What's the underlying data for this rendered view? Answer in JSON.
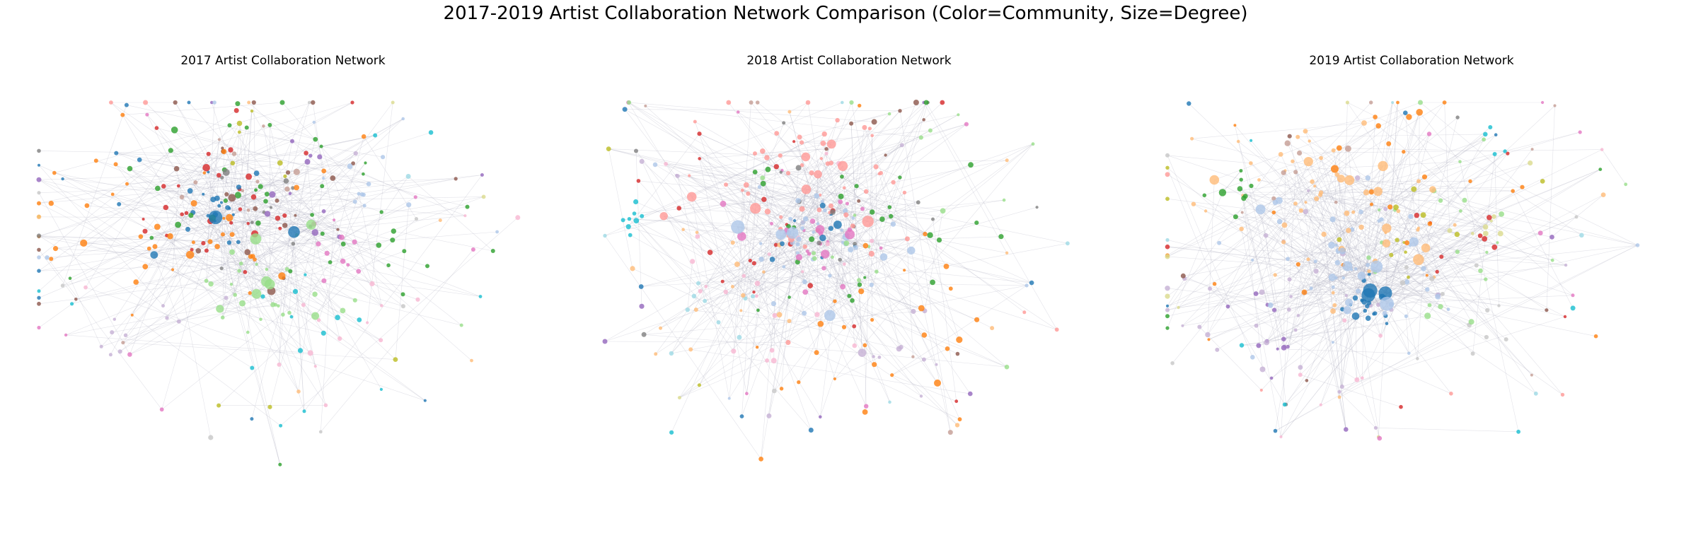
{
  "figure": {
    "title": "2017-2019 Artist Collaboration Network Comparison (Color=Community, Size=Degree)"
  },
  "palette": [
    "#1f77b4",
    "#aec7e8",
    "#ff7f0e",
    "#ffbb78",
    "#2ca02c",
    "#98df8a",
    "#d62728",
    "#ff9896",
    "#9467bd",
    "#c5b0d5",
    "#8c564b",
    "#c49c94",
    "#e377c2",
    "#f7b6d2",
    "#7f7f7f",
    "#c7c7c7",
    "#bcbd22",
    "#dbdb8d",
    "#17becf",
    "#9edae5"
  ],
  "chart_data": [
    {
      "type": "network",
      "title": "2017 Artist Collaboration Network",
      "encoding": {
        "color": "Community",
        "size": "Degree"
      },
      "node_count_estimate": 320,
      "dominant_communities": [
        "blue (hub, center-left)",
        "red",
        "orange",
        "green",
        "light green (lower center)",
        "brown",
        "purple",
        "cyan"
      ],
      "hubs": [
        {
          "community": "blue",
          "degree": "high",
          "region": "center-left"
        },
        {
          "community": "light green",
          "degree": "medium",
          "region": "lower-center"
        },
        {
          "community": "orange",
          "degree": "medium",
          "region": "center-left"
        },
        {
          "community": "red",
          "degree": "medium",
          "region": "center-left"
        }
      ]
    },
    {
      "type": "network",
      "title": "2018 Artist Collaboration Network",
      "encoding": {
        "color": "Community",
        "size": "Degree"
      },
      "node_count_estimate": 360,
      "dominant_communities": [
        "pink (hub, upper-center)",
        "light blue (hub, center)",
        "cyan (left cluster)",
        "pink/magenta",
        "green",
        "orange",
        "red"
      ],
      "hubs": [
        {
          "community": "light blue",
          "degree": "high",
          "region": "center"
        },
        {
          "community": "pink",
          "degree": "high",
          "region": "upper-center"
        },
        {
          "community": "cyan",
          "degree": "medium",
          "region": "left"
        },
        {
          "community": "blue",
          "degree": "medium",
          "region": "center"
        }
      ]
    },
    {
      "type": "network",
      "title": "2019 Artist Collaboration Network",
      "encoding": {
        "color": "Community",
        "size": "Degree"
      },
      "node_count_estimate": 380,
      "dominant_communities": [
        "peach (hub, upper-left)",
        "light blue (hub, center)",
        "blue (lower-center)",
        "orange",
        "green",
        "light green",
        "purple",
        "red"
      ],
      "hubs": [
        {
          "community": "light blue",
          "degree": "high",
          "region": "center"
        },
        {
          "community": "peach",
          "degree": "high",
          "region": "upper-center-left"
        },
        {
          "community": "blue",
          "degree": "high",
          "region": "lower-center"
        },
        {
          "community": "green",
          "degree": "medium",
          "region": "upper-left"
        }
      ]
    }
  ]
}
